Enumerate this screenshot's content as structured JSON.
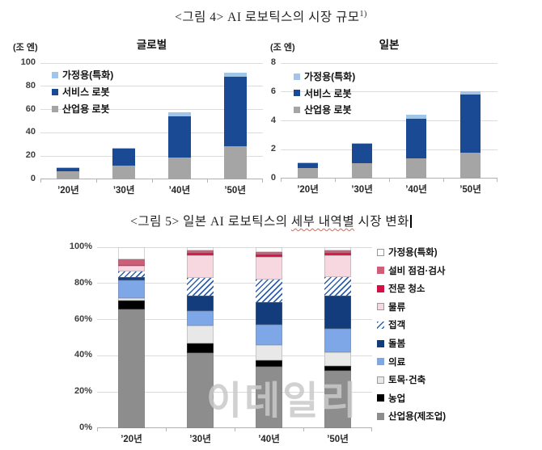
{
  "figure4": {
    "caption": "<그림 4> AI 로보틱스의 시장 규모",
    "footnote_marker": "1)"
  },
  "figure5": {
    "caption_prefix": "<그림 5> 일본 AI 로보틱스의 ",
    "caption_underlined": "세부 내역별",
    "caption_suffix": " 시장 변화"
  },
  "watermark_text": "이데일리",
  "colors": {
    "home_light_blue": "#9fc5e8",
    "service_dark_blue": "#1a4a94",
    "industrial_gray": "#a5a5a5",
    "grid": "#dcdcdc",
    "axis": "#b0b0b0",
    "spellcheck_underline": "#e2654d"
  },
  "chart_data": [
    {
      "id": "global",
      "type": "bar",
      "stacked": true,
      "title": "글로벌",
      "unit_label": "(조 엔)",
      "categories": [
        "’20년",
        "’30년",
        "’40년",
        "’50년"
      ],
      "ylim": [
        0,
        100
      ],
      "ytick_step": 20,
      "ytick_suffix": "",
      "grid": true,
      "legend_position": "inside-top-left",
      "series": [
        {
          "name": "가정용(특화)",
          "color": "#9fc5e8",
          "values": [
            0.3,
            0.5,
            3,
            3.5
          ]
        },
        {
          "name": "서비스 로봇",
          "color": "#1a4a94",
          "values": [
            3,
            15,
            35.5,
            59.5
          ]
        },
        {
          "name": "산업용 로봇",
          "color": "#a5a5a5",
          "values": [
            7,
            11.5,
            19,
            28.5
          ]
        }
      ]
    },
    {
      "id": "japan",
      "type": "bar",
      "stacked": true,
      "title": "일본",
      "unit_label": "(조 엔)",
      "categories": [
        "’20년",
        "’30년",
        "’40년",
        "’50년"
      ],
      "ylim": [
        0,
        8
      ],
      "ytick_step": 2,
      "ytick_suffix": "",
      "grid": true,
      "legend_position": "inside-top-left",
      "series": [
        {
          "name": "가정용(특화)",
          "color": "#9fc5e8",
          "values": [
            0.05,
            0.05,
            0.25,
            0.25
          ]
        },
        {
          "name": "서비스 로봇",
          "color": "#1a4a94",
          "values": [
            0.35,
            1.35,
            2.75,
            4.0
          ]
        },
        {
          "name": "산업용 로봇",
          "color": "#a5a5a5",
          "values": [
            0.7,
            1.05,
            1.4,
            1.8
          ]
        }
      ]
    },
    {
      "id": "japan_detail",
      "type": "bar",
      "stacked": true,
      "percent": true,
      "title": "",
      "categories": [
        "’20년",
        "’30년",
        "’40년",
        "’50년"
      ],
      "ylim": [
        0,
        100
      ],
      "ytick_step": 20,
      "ytick_suffix": "%",
      "grid": true,
      "legend_position": "right",
      "series": [
        {
          "name": "가정용(특화)",
          "color": "#ffffff",
          "bordered": true,
          "values": [
            6.5,
            2,
            2.5,
            2
          ]
        },
        {
          "name": "설비 점검·검사",
          "color": "#cf5e78",
          "values": [
            3.5,
            1,
            1.5,
            1
          ]
        },
        {
          "name": "전문 청소",
          "color": "#d01243",
          "values": [
            0.5,
            1.5,
            1.5,
            1.5
          ]
        },
        {
          "name": "물류",
          "color": "#f7d8e1",
          "bordered": true,
          "values": [
            3,
            12.5,
            12.5,
            12
          ]
        },
        {
          "name": "접객",
          "color": "#2f5fae",
          "pattern": "diagonal-hatch",
          "values": [
            3,
            10,
            12.5,
            10.5
          ]
        },
        {
          "name": "돌봄",
          "color": "#133c7c",
          "values": [
            2,
            8.5,
            12.5,
            18
          ]
        },
        {
          "name": "의료",
          "color": "#7ea7e8",
          "values": [
            9.5,
            8,
            11,
            13
          ]
        },
        {
          "name": "토목·건축",
          "color": "#e9e8e8",
          "bordered": true,
          "values": [
            1.5,
            9.5,
            8.5,
            7.5
          ]
        },
        {
          "name": "농업",
          "color": "#000000",
          "values": [
            5,
            5.5,
            3.5,
            3
          ]
        },
        {
          "name": "산업용(제조업)",
          "color": "#8d8d8d",
          "values": [
            65.5,
            41.5,
            34,
            31.5
          ]
        }
      ]
    }
  ]
}
